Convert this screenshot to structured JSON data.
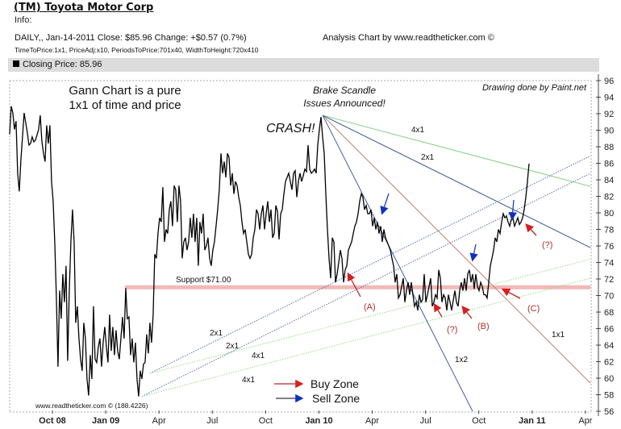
{
  "header": {
    "title": "(TM) Toyota Motor Corp",
    "info": "Info:",
    "daily_line": "DAILY,, Jan-14-2011  Close: $85.96  Change: +$0.57  (0.7%)",
    "params_line": "TimeToPrice:1x1, PriceAdj:x10, PeriodsToPrice:701x40, WidthToHeight:720x410",
    "credit": "Analysis Chart by www.readtheticker.com ©",
    "legend_bar": "Closing Price: 85.96"
  },
  "annotations": {
    "gann_note_1": "Gann Chart is a pure",
    "gann_note_2": "1x1 of time and price",
    "brake_1": "Brake Scandle",
    "brake_2": "Issues Announced!",
    "crash": "CRASH!",
    "paint": "Drawing done by Paint.net",
    "watermark": "www.readtheticker.com © (188.4226)",
    "support": "Support $71.00",
    "label_4x1_top": "4x1",
    "label_2x1_top": "2x1",
    "label_1x1": "1x1",
    "label_1x2": "1x2",
    "label_2x1_a": "2x1",
    "label_2x1_b": "2x1",
    "label_4x1_a": "4x1",
    "label_4x1_b": "4x1",
    "label_A": "(A)",
    "label_q1": "(?)",
    "label_B": "(B)",
    "label_C": "(C)",
    "label_q2": "(?)",
    "buy_zone": "Buy Zone",
    "sell_zone": "Sell Zone"
  },
  "colors": {
    "price": "#000000",
    "buy": "#cc2222",
    "sell": "#1133bb",
    "support": "#f2b8b8"
  },
  "chart_data": {
    "type": "line",
    "title": "(TM) Toyota Motor Corp — Closing Price",
    "x_unit": "months since Oct 2008",
    "x_start": -2.41,
    "x_step": 0.0908,
    "xlim": [
      -2.41,
      30.28
    ],
    "ylim": [
      56,
      96
    ],
    "y_step": 2,
    "grid": false,
    "xticks": [
      {
        "label": "Oct 08",
        "month": 0,
        "bold": true
      },
      {
        "label": "Jan 09",
        "month": 3,
        "bold": true
      },
      {
        "label": "Apr",
        "month": 6,
        "bold": false
      },
      {
        "label": "Jul",
        "month": 9,
        "bold": false
      },
      {
        "label": "Oct",
        "month": 12,
        "bold": false
      },
      {
        "label": "Jan 10",
        "month": 15,
        "bold": true
      },
      {
        "label": "Apr",
        "month": 18,
        "bold": false
      },
      {
        "label": "Jul",
        "month": 21,
        "bold": false
      },
      {
        "label": "Oct",
        "month": 24,
        "bold": false
      },
      {
        "label": "Jan 11",
        "month": 27,
        "bold": true
      },
      {
        "label": "Apr",
        "month": 30,
        "bold": false
      }
    ],
    "yticks": [
      "56",
      "58",
      "60",
      "62",
      "64",
      "66",
      "68",
      "70",
      "72",
      "74",
      "76",
      "78",
      "80",
      "82",
      "84",
      "86",
      "88",
      "90",
      "92",
      "94",
      "96"
    ],
    "values": [
      89.5,
      92.9,
      92.1,
      90.1,
      91.1,
      84.8,
      82.6,
      86.4,
      89.2,
      92.1,
      90.9,
      89.7,
      88.2,
      88.4,
      89.2,
      88.6,
      88.8,
      89.4,
      90.1,
      91.8,
      88.7,
      87.2,
      86.2,
      90.6,
      88.4,
      90.6,
      83.8,
      81.4,
      76.5,
      69.7,
      61.4,
      70.6,
      67.2,
      72.6,
      69.2,
      73.6,
      62.1,
      70.6,
      76.5,
      80.4,
      76.5,
      66.7,
      68.7,
      64.8,
      62.3,
      60.9,
      66.7,
      64.8,
      59.9,
      57.9,
      62.8,
      59.9,
      68.7,
      62.3,
      61.9,
      63.8,
      64.8,
      61.4,
      64.3,
      66.2,
      63.8,
      61.9,
      67.7,
      63.3,
      66.2,
      62.8,
      65.8,
      63.3,
      62.3,
      64.8,
      67.4,
      64.8,
      70.9,
      67.2,
      67.4,
      62.8,
      64.8,
      61.9,
      64.3,
      59.9,
      57.8,
      60.9,
      59.9,
      61.7,
      61.9,
      65.3,
      63.0,
      66.7,
      64.3,
      67.7,
      75.0,
      74.5,
      77.5,
      79.4,
      78.9,
      83.1,
      76.5,
      78.0,
      77.5,
      80.4,
      81.4,
      78.4,
      83.3,
      82.8,
      78.9,
      83.3,
      81.4,
      74.5,
      76.5,
      77.0,
      75.5,
      76.5,
      79.4,
      77.0,
      79.9,
      76.5,
      79.4,
      73.6,
      78.9,
      77.5,
      79.9,
      75.5,
      76.0,
      77.0,
      74.5,
      73.6,
      75.5,
      76.5,
      78.4,
      80.4,
      82.8,
      87.2,
      84.8,
      86.2,
      84.3,
      87.2,
      86.7,
      83.3,
      84.8,
      82.3,
      83.8,
      83.3,
      81.9,
      80.9,
      78.9,
      77.5,
      78.0,
      76.5,
      75.0,
      74.5,
      75.0,
      77.0,
      78.0,
      80.4,
      79.9,
      78.0,
      79.9,
      80.9,
      78.0,
      79.9,
      81.4,
      78.9,
      80.4,
      77.0,
      77.5,
      80.9,
      80.2,
      76.8,
      79.9,
      80.4,
      82.3,
      83.8,
      84.3,
      84.8,
      83.8,
      82.8,
      84.8,
      85.1,
      81.9,
      83.8,
      84.8,
      83.8,
      84.5,
      85.3,
      85.0,
      88.2,
      85.3,
      84.8,
      85.0,
      85.3,
      84.8,
      88.2,
      90.1,
      91.6,
      89.2,
      87.2,
      82.3,
      78.0,
      74.5,
      72.1,
      77.0,
      76.5,
      71.6,
      72.6,
      74.0,
      75.5,
      74.5,
      71.6,
      73.1,
      73.6,
      75.5,
      76.0,
      76.5,
      77.5,
      78.4,
      78.9,
      79.9,
      81.4,
      82.3,
      81.9,
      80.4,
      80.9,
      79.9,
      79.9,
      80.4,
      78.4,
      79.4,
      78.0,
      78.9,
      77.5,
      78.4,
      76.5,
      78.0,
      77.0,
      76.5,
      76.0,
      75.5,
      74.5,
      73.6,
      71.6,
      72.6,
      69.7,
      70.1,
      71.1,
      72.1,
      69.2,
      70.6,
      71.6,
      70.1,
      71.6,
      70.1,
      68.7,
      69.2,
      68.2,
      70.1,
      69.2,
      69.5,
      72.6,
      69.2,
      70.1,
      71.1,
      72.1,
      68.7,
      69.2,
      70.1,
      69.7,
      73.1,
      72.1,
      69.2,
      70.1,
      69.7,
      68.2,
      70.1,
      69.2,
      68.2,
      69.4,
      70.6,
      69.2,
      68.7,
      70.6,
      71.6,
      70.6,
      72.1,
      70.6,
      72.6,
      73.1,
      71.6,
      72.6,
      70.8,
      72.6,
      71.1,
      70.6,
      71.6,
      71.1,
      70.1,
      70.1,
      69.7,
      71.6,
      73.6,
      74.5,
      75.5,
      77.0,
      76.5,
      78.0,
      77.5,
      78.9,
      79.9,
      79.4,
      79.6,
      78.9,
      78.4,
      79.2,
      79.4,
      78.4,
      78.9,
      79.4,
      78.6,
      78.9,
      79.4,
      80.4,
      81.9,
      83.8,
      85.96
    ],
    "support": {
      "price": 71.0,
      "from_month": 4.09,
      "to_month": 30.28
    },
    "gann_lines": [
      {
        "name": "4x1 (from high)",
        "from": [
          15.21,
          91.8
        ],
        "to": [
          30.28,
          83.2
        ],
        "color": "#7fd07f",
        "dash": false
      },
      {
        "name": "2x1 (from high)",
        "from": [
          15.21,
          91.8
        ],
        "to": [
          30.28,
          75.8
        ],
        "color": "#34558a",
        "dash": false
      },
      {
        "name": "1x1 (from high)",
        "from": [
          15.21,
          91.8
        ],
        "to": [
          30.28,
          59.4
        ],
        "color": "#c47a6c",
        "dash": false
      },
      {
        "name": "1x2 (from high)",
        "from": [
          15.21,
          91.8
        ],
        "to": [
          23.65,
          56.0
        ],
        "color": "#3f5f9e",
        "dash": false
      },
      {
        "name": "2x1 (from low 2)",
        "from": [
          5.49,
          60.6
        ],
        "to": [
          30.28,
          86.9
        ],
        "color": "#5a6eaa",
        "dash": true
      },
      {
        "name": "2x1 (from low 1)",
        "from": [
          5.04,
          57.8
        ],
        "to": [
          30.28,
          84.8
        ],
        "color": "#5a6eaa",
        "dash": true
      },
      {
        "name": "4x1 (from low 2)",
        "from": [
          5.49,
          60.6
        ],
        "to": [
          30.28,
          74.4
        ],
        "color": "#99dd88",
        "dash": true
      },
      {
        "name": "4x1 (from low 1)",
        "from": [
          5.04,
          57.8
        ],
        "to": [
          30.28,
          72.1
        ],
        "color": "#99dd88",
        "dash": true
      }
    ]
  }
}
